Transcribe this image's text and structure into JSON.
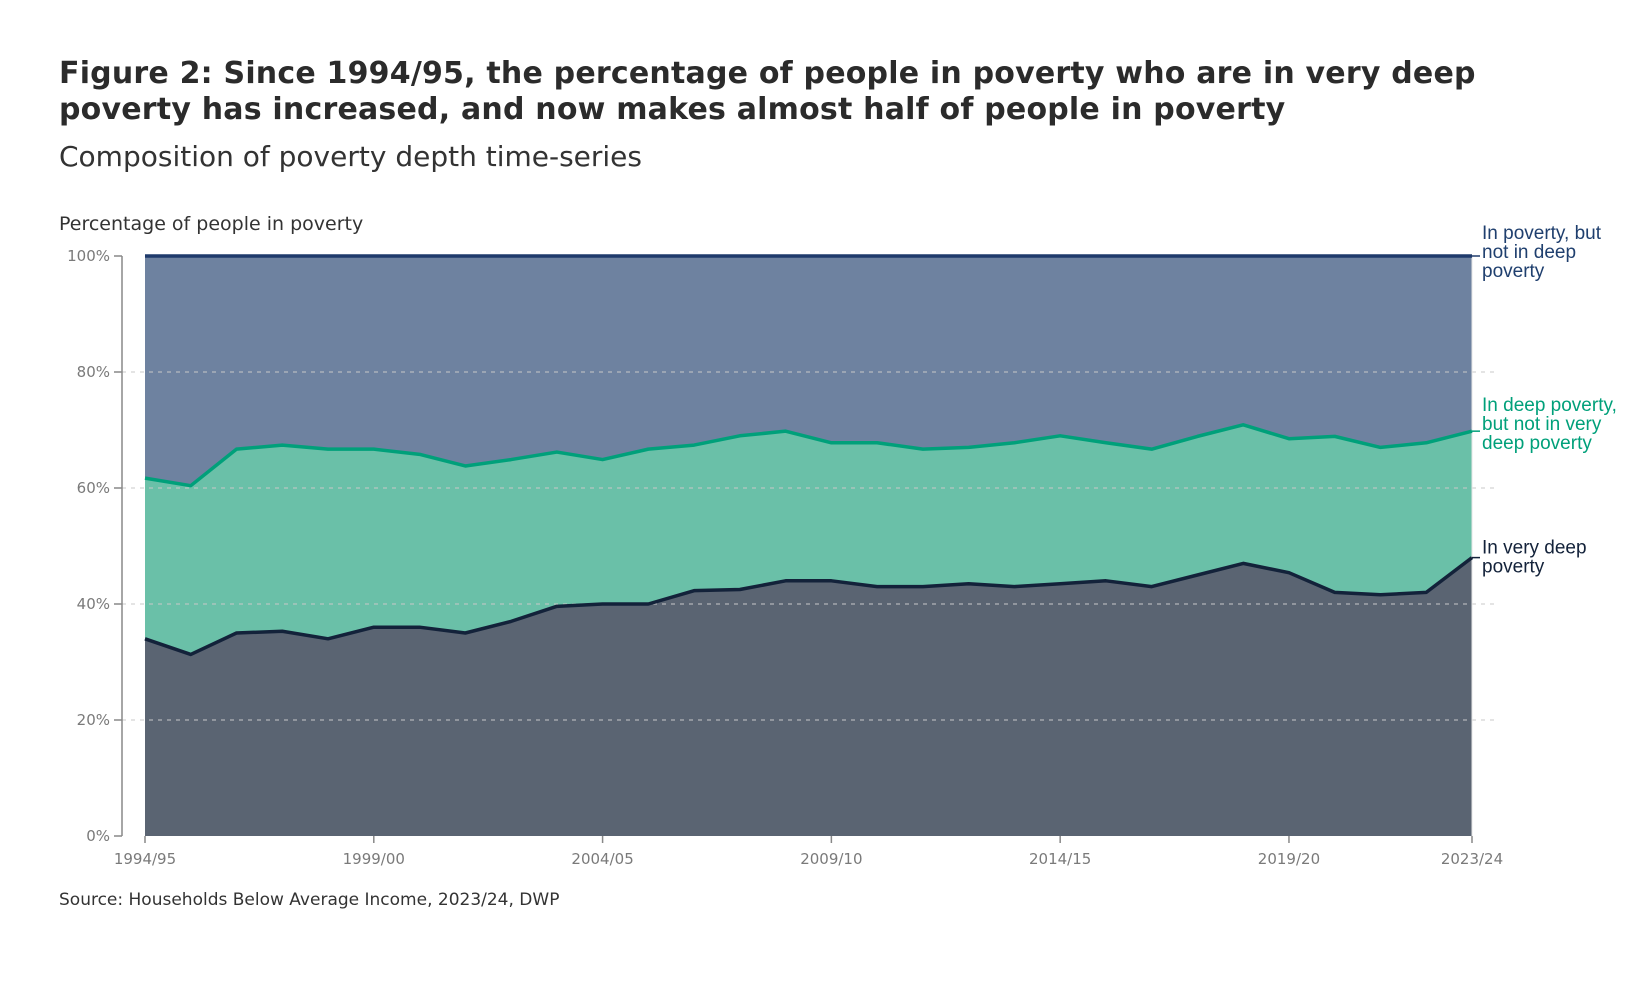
{
  "chart_data": {
    "type": "area",
    "stacked": true,
    "title": "Figure 2: Since 1994/95, the percentage of people in poverty who are in very deep poverty has increased, and now makes almost half of people in poverty",
    "subtitle": "Composition of poverty depth time-series",
    "ylabel": "Percentage of people in poverty",
    "xlabel": "",
    "ylim": [
      0,
      100
    ],
    "y_ticks": [
      "0%",
      "20%",
      "40%",
      "60%",
      "80%",
      "100%"
    ],
    "x_ticks": [
      "1994/95",
      "1999/00",
      "2004/05",
      "2009/10",
      "2014/15",
      "2019/20",
      "2023/24"
    ],
    "grid": true,
    "legend": "right (inline labels)",
    "x": [
      "1994/95",
      "1995/96",
      "1996/97",
      "1997/98",
      "1998/99",
      "1999/00",
      "2000/01",
      "2001/02",
      "2002/03",
      "2003/04",
      "2004/05",
      "2005/06",
      "2006/07",
      "2007/08",
      "2008/09",
      "2009/10",
      "2010/11",
      "2011/12",
      "2012/13",
      "2013/14",
      "2014/15",
      "2015/16",
      "2016/17",
      "2017/18",
      "2018/19",
      "2019/20",
      "2020/21",
      "2021/22",
      "2022/23",
      "2023/24"
    ],
    "series": [
      {
        "name": "In very deep poverty",
        "color": "#5a6472",
        "line": "#13223a",
        "values": [
          34,
          31.3,
          35,
          35.3,
          34,
          36,
          36,
          35,
          37,
          39.6,
          40,
          40,
          42.3,
          42.5,
          44,
          44,
          43,
          43,
          43.5,
          43,
          43.5,
          44,
          43,
          45,
          47,
          45.4,
          42,
          41.6,
          42,
          48
        ]
      },
      {
        "name": "In deep poverty, but not in very deep poverty",
        "color": "#6ac0a8",
        "line": "#00a07a",
        "values": [
          27.7,
          29.1,
          31.7,
          32.1,
          32.7,
          30.7,
          29.8,
          28.8,
          27.9,
          26.6,
          24.9,
          26.7,
          25.1,
          26.5,
          25.8,
          23.8,
          24.8,
          23.7,
          23.5,
          24.8,
          25.5,
          23.8,
          23.7,
          23.9,
          23.9,
          23.1,
          26.9,
          25.4,
          25.8,
          21.8
        ]
      },
      {
        "name": "In poverty, but not in deep poverty",
        "color": "#6e82a0",
        "line": "#1f3a6b",
        "values": [
          38.3,
          39.6,
          33.3,
          32.6,
          33.3,
          33.3,
          34.2,
          36.2,
          35.1,
          33.8,
          35.1,
          33.3,
          32.6,
          31,
          30.2,
          32.2,
          32.2,
          33.3,
          33,
          32.2,
          31,
          32.2,
          33.3,
          31.1,
          29.1,
          31.5,
          31.1,
          33,
          32.2,
          30.2
        ]
      }
    ],
    "series_labels": [
      [
        "In very deep",
        "poverty"
      ],
      [
        "In deep poverty,",
        "but not in very",
        "deep poverty"
      ],
      [
        "In poverty, but",
        "not in deep",
        "poverty"
      ]
    ],
    "source": "Source: Households Below Average Income, 2023/24, DWP"
  }
}
